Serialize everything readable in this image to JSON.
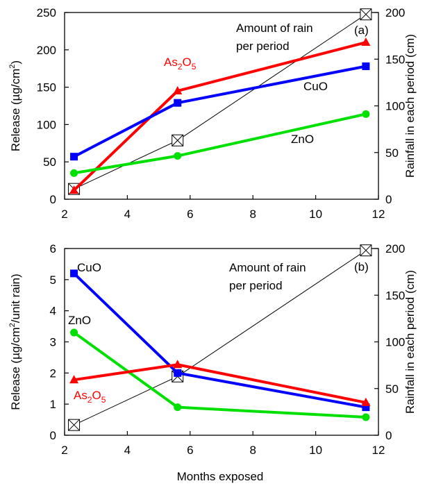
{
  "chart_data": [
    {
      "type": "line",
      "panel_label": "(a)",
      "xlabel": "",
      "ylabel": "Release (µg/cm²)",
      "ylabel_parts": [
        "Release (µg/cm",
        "2",
        ")"
      ],
      "y2label": "Rainfall in each period (cm)",
      "xlim": [
        2,
        12
      ],
      "ylim": [
        0,
        250
      ],
      "y2lim": [
        0,
        200
      ],
      "xticks": [
        "2",
        "4",
        "6",
        "8",
        "10",
        "12"
      ],
      "yticks": [
        "0",
        "50",
        "100",
        "150",
        "200",
        "250"
      ],
      "y2ticks": [
        "0",
        "50",
        "100",
        "150",
        "200"
      ],
      "x": [
        2.3,
        5.6,
        11.6
      ],
      "series": [
        {
          "name": "As2O5",
          "label_parts": [
            "As",
            "2",
            "O",
            "5"
          ],
          "values": [
            12,
            145,
            210
          ],
          "color": "#ff0000",
          "marker": "triangle"
        },
        {
          "name": "CuO",
          "label_parts": [
            "CuO"
          ],
          "values": [
            57,
            129,
            178
          ],
          "color": "#0000ff",
          "marker": "square"
        },
        {
          "name": "ZnO",
          "label_parts": [
            "ZnO"
          ],
          "values": [
            35,
            58,
            114
          ],
          "color": "#00e000",
          "marker": "circle"
        }
      ],
      "rain_series": {
        "axis": "right",
        "values": [
          11,
          63,
          198
        ],
        "color": "#000000",
        "marker": "boxed-x"
      },
      "rain_annotation": [
        "Amount of rain",
        "per period"
      ],
      "grid": false
    },
    {
      "type": "line",
      "panel_label": "(b)",
      "xlabel": "Months exposed",
      "ylabel": "Release (µg/cm²/unit rain)",
      "ylabel_parts": [
        "Release (µg/cm",
        "2",
        "/unit rain)"
      ],
      "y2label": "Rainfall in each period (cm)",
      "xlim": [
        2,
        12
      ],
      "ylim": [
        0,
        6
      ],
      "y2lim": [
        0,
        200
      ],
      "xticks": [
        "2",
        "4",
        "6",
        "8",
        "10",
        "12"
      ],
      "yticks": [
        "0",
        "1",
        "2",
        "3",
        "4",
        "5",
        "6"
      ],
      "y2ticks": [
        "0",
        "50",
        "100",
        "150",
        "200"
      ],
      "x": [
        2.3,
        5.6,
        11.6
      ],
      "series": [
        {
          "name": "CuO",
          "label_parts": [
            "CuO"
          ],
          "values": [
            5.2,
            2.0,
            0.9
          ],
          "color": "#0000ff",
          "marker": "square"
        },
        {
          "name": "ZnO",
          "label_parts": [
            "ZnO"
          ],
          "values": [
            3.3,
            0.9,
            0.58
          ],
          "color": "#00e000",
          "marker": "circle"
        },
        {
          "name": "As2O5",
          "label_parts": [
            "As",
            "2",
            "O",
            "5"
          ],
          "values": [
            1.78,
            2.27,
            1.05
          ],
          "color": "#ff0000",
          "marker": "triangle"
        }
      ],
      "rain_series": {
        "axis": "right",
        "values": [
          11,
          63,
          198
        ],
        "color": "#000000",
        "marker": "boxed-x"
      },
      "rain_annotation": [
        "Amount of rain",
        "per period"
      ],
      "grid": false
    }
  ]
}
